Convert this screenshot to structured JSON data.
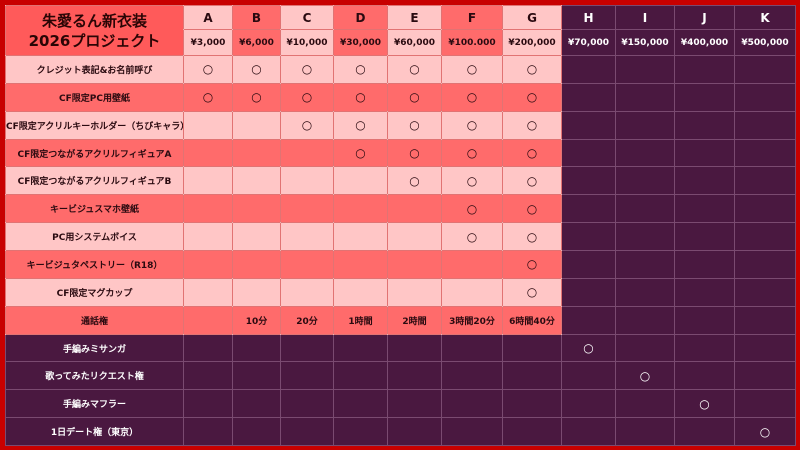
{
  "header": {
    "title_lines": [
      "朱愛るん新衣装",
      "2026プロジェクト"
    ],
    "columns": [
      {
        "letter": "A",
        "price": "¥3,000"
      },
      {
        "letter": "B",
        "price": "¥6,000"
      },
      {
        "letter": "C",
        "price": "¥10,000"
      },
      {
        "letter": "D",
        "price": "¥30,000"
      },
      {
        "letter": "E",
        "price": "¥60,000"
      },
      {
        "letter": "F",
        "price": "¥100.000"
      },
      {
        "letter": "G",
        "price": "¥200,000"
      },
      {
        "letter": "H",
        "price": "¥70,000"
      },
      {
        "letter": "I",
        "price": "¥150,000"
      },
      {
        "letter": "J",
        "price": "¥400,000"
      },
      {
        "letter": "K",
        "price": "¥500,000"
      }
    ]
  },
  "rows": [
    {
      "label": "クレジット表記&お名前呼び",
      "cells": [
        "○",
        "○",
        "○",
        "○",
        "○",
        "○",
        "○",
        null,
        null,
        null,
        null
      ]
    },
    {
      "label": "CF限定PC用壁紙",
      "cells": [
        "○",
        "○",
        "○",
        "○",
        "○",
        "○",
        "○",
        null,
        null,
        null,
        null
      ]
    },
    {
      "label": "CF限定アクリルキーホルダー（ちびキャラ）",
      "cells": [
        null,
        null,
        "○",
        "○",
        "○",
        "○",
        "○",
        null,
        null,
        null,
        null
      ]
    },
    {
      "label": "CF限定つながるアクリルフィギュアA",
      "cells": [
        null,
        null,
        null,
        "○",
        "○",
        "○",
        "○",
        null,
        null,
        null,
        null
      ]
    },
    {
      "label": "CF限定つながるアクリルフィギュアB",
      "cells": [
        null,
        null,
        null,
        null,
        "○",
        "○",
        "○",
        null,
        null,
        null,
        null
      ]
    },
    {
      "label": "キービジュスマホ壁紙",
      "cells": [
        null,
        null,
        null,
        null,
        null,
        "○",
        "○",
        null,
        null,
        null,
        null
      ]
    },
    {
      "label": "PC用システムボイス",
      "cells": [
        null,
        null,
        null,
        null,
        null,
        "○",
        "○",
        null,
        null,
        null,
        null
      ]
    },
    {
      "label": "キービジュタペストリー（R18）",
      "cells": [
        null,
        null,
        null,
        null,
        null,
        null,
        "○",
        null,
        null,
        null,
        null
      ]
    },
    {
      "label": "CF限定マグカップ",
      "cells": [
        null,
        null,
        null,
        null,
        null,
        null,
        "○",
        null,
        null,
        null,
        null
      ]
    },
    {
      "label": "通話権",
      "cells": [
        null,
        "10分",
        "20分",
        "1時間",
        "2時間",
        "3時間20分",
        "6時間40分",
        null,
        null,
        null,
        null
      ]
    },
    {
      "label": "手編みミサンガ",
      "cells": [
        null,
        null,
        null,
        null,
        null,
        null,
        null,
        "○",
        null,
        null,
        null
      ]
    },
    {
      "label": "歌ってみたリクエスト権",
      "cells": [
        null,
        null,
        null,
        null,
        null,
        null,
        null,
        null,
        "○",
        null,
        null
      ]
    },
    {
      "label": "手編みマフラー",
      "cells": [
        null,
        null,
        null,
        null,
        null,
        null,
        null,
        null,
        null,
        "○",
        null
      ]
    },
    {
      "label": "1日デート権（東京）",
      "cells": [
        null,
        null,
        null,
        null,
        null,
        null,
        null,
        null,
        null,
        null,
        "○"
      ]
    }
  ]
}
